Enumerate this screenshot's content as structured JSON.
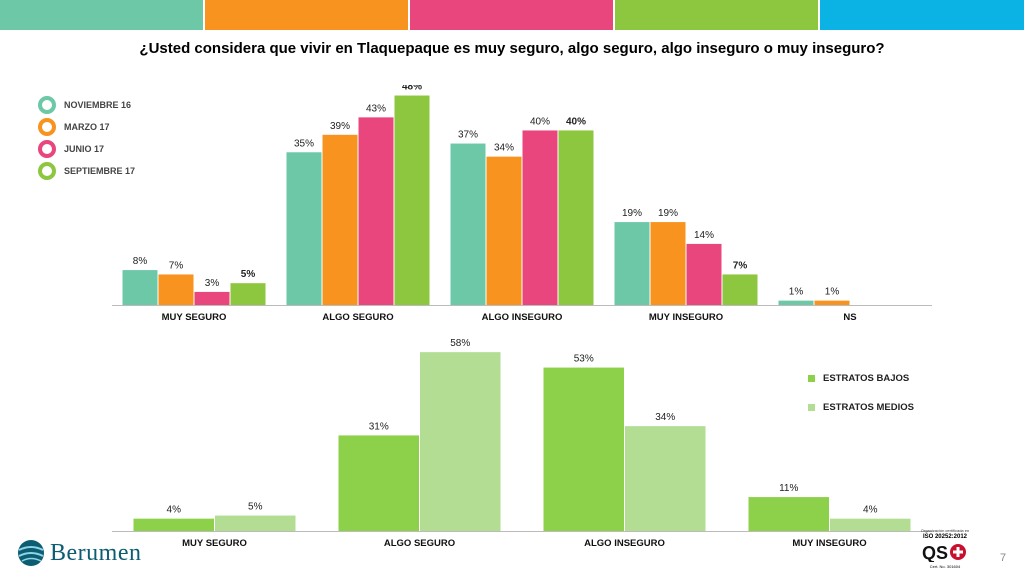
{
  "header": {
    "title": "¿Usted considera que vivir en Tlaquepaque es muy seguro, algo seguro, algo inseguro o muy  inseguro?",
    "stripe_colors": [
      "#6cc8a6",
      "#f7931e",
      "#e8467c",
      "#8dc63f",
      "#0bb3e4"
    ]
  },
  "legend1": {
    "items": [
      "NOVIEMBRE 16",
      "MARZO 17",
      "JUNIO 17",
      "SEPTIEMBRE 17"
    ]
  },
  "legend2": {
    "items": [
      "ESTRATOS BAJOS",
      "ESTRATOS MEDIOS"
    ]
  },
  "brand": {
    "name": "Berumen",
    "cert_caption": "Organización certificada en",
    "cert_name": "ISO 20252:2012",
    "cert_number": "Cert. No. 301604",
    "page_number": "7"
  },
  "chart_data": [
    {
      "type": "bar",
      "categories": [
        "MUY SEGURO",
        "ALGO SEGURO",
        "ALGO INSEGURO",
        "MUY INSEGURO",
        "NS"
      ],
      "series": [
        {
          "name": "NOVIEMBRE 16",
          "color": "#6cc8a6",
          "values": [
            8,
            35,
            37,
            19,
            1
          ],
          "labels": [
            "8%",
            "35%",
            "37%",
            "19%",
            "1%"
          ]
        },
        {
          "name": "MARZO 17",
          "color": "#f7931e",
          "values": [
            7,
            39,
            34,
            19,
            1
          ],
          "labels": [
            "7%",
            "39%",
            "34%",
            "19%",
            "1%"
          ]
        },
        {
          "name": "JUNIO 17",
          "color": "#e8467c",
          "values": [
            3,
            43,
            40,
            14,
            0
          ],
          "labels": [
            "3%",
            "43%",
            "40%",
            "14%",
            ""
          ]
        },
        {
          "name": "SEPTIEMBRE 17",
          "color": "#8dc63f",
          "values": [
            5,
            48,
            40,
            7,
            0
          ],
          "labels": [
            "5%",
            "48%",
            "40%",
            "7%",
            ""
          ],
          "bold_labels": true
        }
      ],
      "ylim": [
        0,
        50
      ],
      "legend": "left"
    },
    {
      "type": "bar",
      "categories": [
        "MUY SEGURO",
        "ALGO SEGURO",
        "ALGO INSEGURO",
        "MUY INSEGURO"
      ],
      "series": [
        {
          "name": "ESTRATOS BAJOS",
          "color": "#8dd04a",
          "values": [
            4,
            31,
            53,
            11
          ],
          "labels": [
            "4%",
            "31%",
            "53%",
            "11%"
          ]
        },
        {
          "name": "ESTRATOS MEDIOS",
          "color": "#b2dd92",
          "values": [
            5,
            58,
            34,
            4
          ],
          "labels": [
            "5%",
            "58%",
            "34%",
            "4%"
          ]
        }
      ],
      "ylim": [
        0,
        60
      ],
      "legend": "right"
    }
  ]
}
